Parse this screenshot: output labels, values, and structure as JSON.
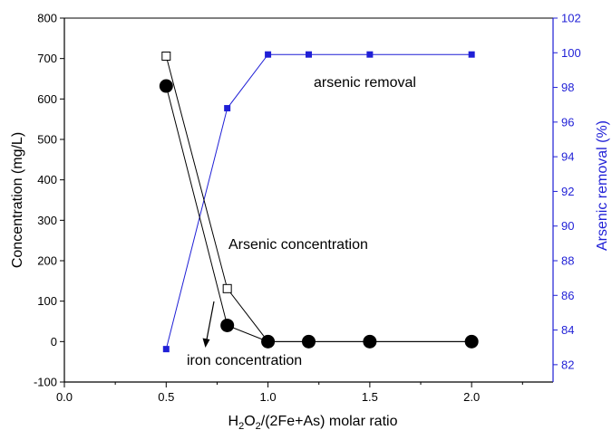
{
  "chart_data": {
    "type": "line",
    "x_axis": {
      "label_parts": [
        {
          "text": "H",
          "sub": false
        },
        {
          "text": "2",
          "sub": true
        },
        {
          "text": "O",
          "sub": false
        },
        {
          "text": "2",
          "sub": true
        },
        {
          "text": "/(2Fe+As) molar ratio",
          "sub": false
        }
      ],
      "range": [
        0,
        2.4
      ],
      "ticks": [
        0.0,
        0.5,
        1.0,
        1.5,
        2.0
      ],
      "tick_labels": [
        "0.0",
        "0.5",
        "1.0",
        "1.5",
        "2.0"
      ],
      "minor_ticks": [
        0.25,
        0.75,
        1.25,
        1.75,
        2.25
      ]
    },
    "y_axis_left": {
      "label": "Concentration (mg/L)",
      "range": [
        -100,
        800
      ],
      "ticks": [
        -100,
        0,
        100,
        200,
        300,
        400,
        500,
        600,
        700,
        800
      ],
      "tick_labels": [
        "-100",
        "0",
        "100",
        "200",
        "300",
        "400",
        "500",
        "600",
        "700",
        "800"
      ]
    },
    "y_axis_right": {
      "label": "Arsenic removal (%)",
      "range": [
        81,
        102
      ],
      "ticks": [
        82,
        84,
        86,
        88,
        90,
        92,
        94,
        96,
        98,
        100,
        102
      ],
      "tick_labels": [
        "82",
        "84",
        "86",
        "88",
        "90",
        "92",
        "94",
        "96",
        "98",
        "100",
        "102"
      ],
      "color": "#1f1fd6"
    },
    "series": [
      {
        "axis": "right",
        "marker": "filled-square",
        "color": "#1f1fd6",
        "x": [
          0.5,
          0.8,
          1.0,
          1.2,
          1.5,
          2.0
        ],
        "y": [
          82.9,
          96.8,
          99.9,
          99.9,
          99.9,
          99.9
        ]
      },
      {
        "axis": "left",
        "marker": "open-square",
        "color": "#000000",
        "x": [
          0.5,
          0.8,
          1.0,
          1.2,
          1.5,
          2.0
        ],
        "y": [
          706,
          131,
          0,
          0,
          0,
          0
        ]
      },
      {
        "axis": "left",
        "marker": "filled-circle",
        "color": "#000000",
        "x": [
          0.5,
          0.8,
          1.0,
          1.2,
          1.5,
          2.0
        ],
        "y": [
          632,
          40,
          0,
          0,
          0,
          0
        ]
      }
    ],
    "annotations": [
      {
        "text": "arsenic removal"
      },
      {
        "text": "Arsenic concentration"
      },
      {
        "text": "iron concentration"
      }
    ],
    "grid": false
  }
}
